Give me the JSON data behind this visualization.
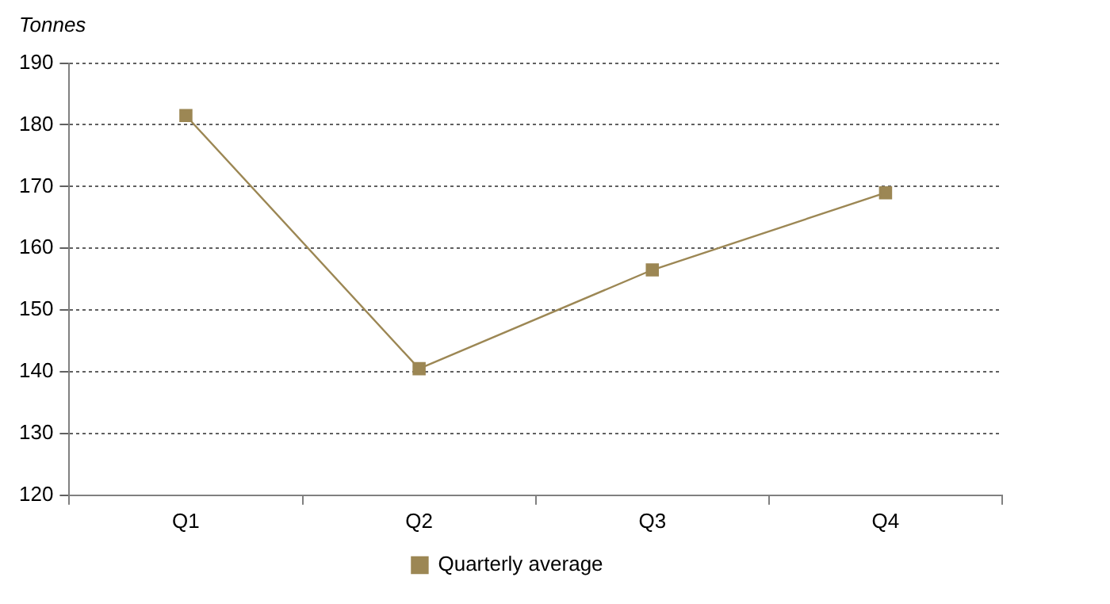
{
  "chart_data": {
    "type": "line",
    "ylabel": "Tonnes",
    "categories": [
      "Q1",
      "Q2",
      "Q3",
      "Q4"
    ],
    "series": [
      {
        "name": "Quarterly average",
        "color": "#9c8754",
        "values": [
          181.5,
          140.5,
          156.5,
          169
        ]
      }
    ],
    "ylim": [
      120,
      190
    ],
    "yticks": [
      120,
      130,
      140,
      150,
      160,
      170,
      180,
      190
    ],
    "grid": "y",
    "legend": "bottom",
    "marker": "square",
    "line_style": "solid"
  }
}
